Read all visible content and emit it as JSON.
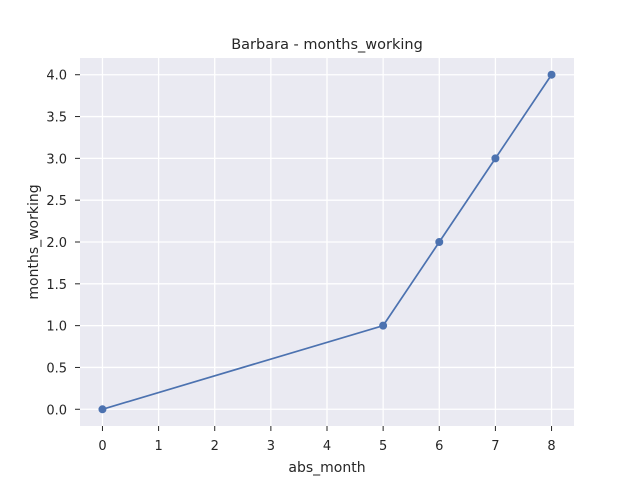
{
  "chart_data": {
    "type": "line",
    "title": "Barbara - months_working",
    "xlabel": "abs_month",
    "ylabel": "months_working",
    "x": [
      0,
      5,
      6,
      7,
      8
    ],
    "series": [
      {
        "values": [
          0.0,
          1.0,
          2.0,
          3.0,
          4.0
        ]
      }
    ],
    "xticks": [
      "0",
      "1",
      "2",
      "3",
      "4",
      "5",
      "6",
      "7",
      "8"
    ],
    "yticks": [
      "0.0",
      "0.5",
      "1.0",
      "1.5",
      "2.0",
      "2.5",
      "3.0",
      "3.5",
      "4.0"
    ],
    "xlim": [
      -0.4,
      8.4
    ],
    "ylim": [
      -0.2,
      4.2
    ],
    "grid": true,
    "colors": {
      "background": "#eaeaf2",
      "grid": "#ffffff",
      "line": "#4c72b0"
    }
  }
}
